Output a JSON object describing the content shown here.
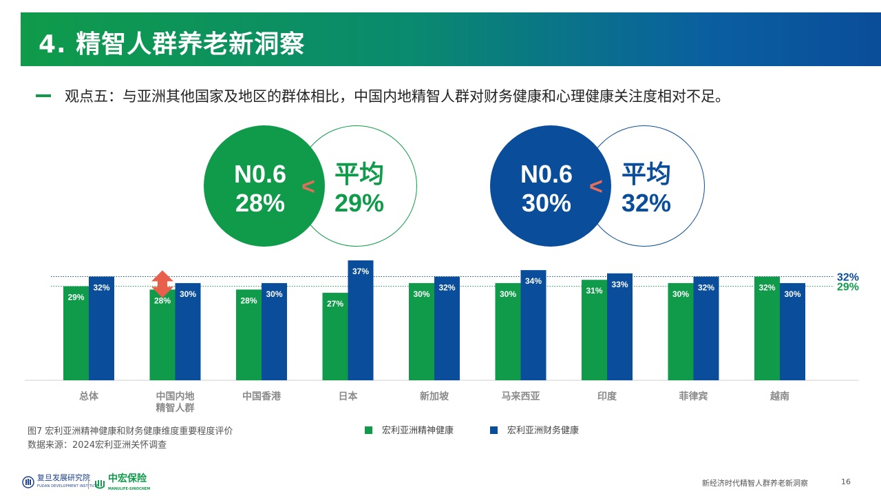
{
  "header": {
    "title": "4. 精智人群养老新洞察"
  },
  "point": {
    "text": "观点五：与亚洲其他国家及地区的群体相比，中国内地精智人群对财务健康和心理健康关注度相对不足。"
  },
  "compare": {
    "left": {
      "rank": "N0.6",
      "value": "28%",
      "lt": "<",
      "avg_label": "平均",
      "avg_value": "29%",
      "color": "#0f9b4a"
    },
    "right": {
      "rank": "N0.6",
      "value": "30%",
      "lt": "<",
      "avg_label": "平均",
      "avg_value": "32%",
      "color": "#0a4d9a"
    }
  },
  "chart_data": {
    "type": "bar",
    "categories": [
      "总体",
      "中国内地\n精智人群",
      "中国香港",
      "日本",
      "新加坡",
      "马来西亚",
      "印度",
      "菲律宾",
      "越南"
    ],
    "series": [
      {
        "name": "宏利亚洲精神健康",
        "color": "#0f9b4a",
        "values": [
          29,
          28,
          28,
          27,
          30,
          30,
          31,
          30,
          32
        ]
      },
      {
        "name": "宏利亚洲财务健康",
        "color": "#0a4d9a",
        "values": [
          32,
          30,
          30,
          37,
          32,
          34,
          33,
          32,
          30
        ]
      }
    ],
    "reference_lines": [
      {
        "value": 32,
        "label": "32%",
        "color": "#0a4d9a"
      },
      {
        "value": 29,
        "label": "29%",
        "color": "#0f9b4a"
      }
    ],
    "ylim": [
      0,
      37
    ],
    "grid": false,
    "legend_position": "bottom"
  },
  "caption": {
    "figure": "图7 宏利亚洲精神健康和财务健康维度重要程度评价",
    "source": "数据来源：2024宏利亚洲关怀调查"
  },
  "legend": {
    "green": "宏利亚洲精神健康",
    "blue": "宏利亚洲财务健康"
  },
  "footer": {
    "logo1_name": "复旦发展研究院",
    "logo1_sub": "FUDAN DEVELOPMENT INSTITUTE",
    "logo2_name": "中宏保险",
    "logo2_sub": "MANULIFE-SINOCHEM",
    "report_title": "新经济时代精智人群养老新洞察",
    "page_number": "16"
  }
}
